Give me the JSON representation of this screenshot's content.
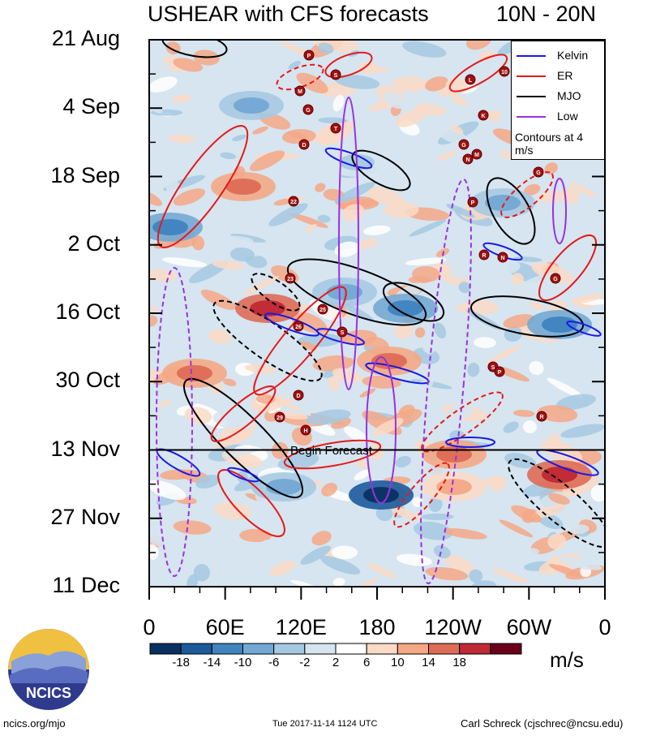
{
  "header": {
    "title": "USHEAR with CFS forecasts",
    "region": "10N - 20N"
  },
  "chart_data": {
    "type": "heatmap",
    "variable": "USHEAR",
    "title": "USHEAR with CFS forecasts",
    "subtitle": "10N - 20N",
    "y_ticks": [
      "21 Aug",
      "4 Sep",
      "18 Sep",
      "2 Oct",
      "16 Oct",
      "30 Oct",
      "13 Nov",
      "27 Nov",
      "11 Dec"
    ],
    "x_ticks": [
      "0",
      "60E",
      "120E",
      "180",
      "120W",
      "60W",
      "0"
    ],
    "xlim": [
      0,
      360
    ],
    "forecast_start": "13 Nov",
    "forecast_label": "Begin Forecast",
    "colorbar": {
      "labels": [
        "-18",
        "-14",
        "-10",
        "-6",
        "-2",
        "2",
        "6",
        "10",
        "14",
        "18"
      ],
      "colors": [
        "#083161",
        "#1d5a9c",
        "#3f83bf",
        "#73a8d4",
        "#a6c9e2",
        "#d6e5f0",
        "#ffffff",
        "#fbdac6",
        "#f4a886",
        "#de6c56",
        "#bf2835",
        "#6b0019"
      ],
      "units": "m/s"
    },
    "legend": [
      {
        "name": "Kelvin",
        "color": "#1919e6"
      },
      {
        "name": "ER",
        "color": "#e61919"
      },
      {
        "name": "MJO",
        "color": "#000000"
      },
      {
        "name": "Low",
        "color": "#9b30e0"
      }
    ],
    "contour_note": "Contours at 4 m/s",
    "storm_markers": [
      "P",
      "S",
      "M",
      "G",
      "T",
      "D",
      "22",
      "23",
      "25",
      "26",
      "S",
      "D",
      "29",
      "H",
      "L",
      "10",
      "K",
      "G",
      "M",
      "N",
      "P",
      "R",
      "N",
      "G",
      "S",
      "P",
      "R",
      "G"
    ]
  },
  "footer": {
    "site": "ncics.org/mjo",
    "timestamp": "Tue 2017-11-14 1124 UTC",
    "author": "Carl Schreck (cjschrec@ncsu.edu)",
    "logo_text": "NCICS"
  }
}
